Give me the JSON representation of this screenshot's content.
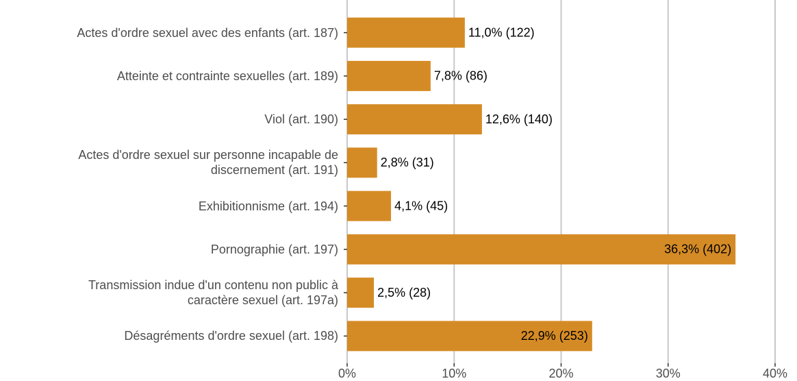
{
  "chart_data": {
    "type": "bar",
    "orientation": "horizontal",
    "categories": [
      "Actes d'ordre sexuel avec des enfants (art. 187)",
      "Atteinte et contrainte sexuelles (art. 189)",
      "Viol (art. 190)",
      "Actes d'ordre sexuel sur personne incapable de\ndiscernement (art. 191)",
      "Exhibitionnisme (art. 194)",
      "Pornographie (art. 197)",
      "Transmission indue d'un contenu non public à\ncaractère sexuel (art. 197a)",
      "Désagréments d'ordre sexuel (art. 198)"
    ],
    "values": [
      11.0,
      7.8,
      12.6,
      2.8,
      4.1,
      36.3,
      2.5,
      22.9
    ],
    "value_labels": [
      "11,0% (122)",
      "7,8% (86)",
      "12,6% (140)",
      "2,8% (31)",
      "4,1% (45)",
      "36,3% (402)",
      "2,5% (28)",
      "22,9% (253)"
    ],
    "color": "#d58b25",
    "xlim": [
      0,
      40
    ],
    "xticks": [
      {
        "value": 0,
        "label": "0%"
      },
      {
        "value": 10,
        "label": "10%"
      },
      {
        "value": 20,
        "label": "20%"
      },
      {
        "value": 30,
        "label": "30%"
      },
      {
        "value": 40,
        "label": "40%"
      }
    ],
    "grid": true
  }
}
